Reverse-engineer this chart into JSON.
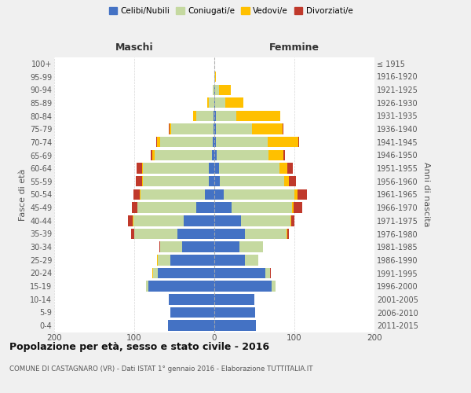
{
  "age_groups": [
    "100+",
    "95-99",
    "90-94",
    "85-89",
    "80-84",
    "75-79",
    "70-74",
    "65-69",
    "60-64",
    "55-59",
    "50-54",
    "45-49",
    "40-44",
    "35-39",
    "30-34",
    "25-29",
    "20-24",
    "15-19",
    "10-14",
    "5-9",
    "0-4"
  ],
  "birth_years": [
    "≤ 1915",
    "1916-1920",
    "1921-1925",
    "1926-1930",
    "1931-1935",
    "1936-1940",
    "1941-1945",
    "1946-1950",
    "1951-1955",
    "1956-1960",
    "1961-1965",
    "1966-1970",
    "1971-1975",
    "1976-1980",
    "1981-1985",
    "1986-1990",
    "1991-1995",
    "1996-2000",
    "2001-2005",
    "2006-2010",
    "2011-2015"
  ],
  "males": {
    "celibi": [
      0,
      0,
      0,
      0,
      1,
      1,
      2,
      3,
      7,
      7,
      12,
      23,
      38,
      46,
      40,
      55,
      71,
      82,
      57,
      55,
      58
    ],
    "coniugati": [
      0,
      0,
      2,
      7,
      22,
      53,
      66,
      72,
      82,
      82,
      80,
      73,
      63,
      54,
      28,
      16,
      5,
      3,
      0,
      0,
      0
    ],
    "vedovi": [
      0,
      0,
      0,
      2,
      3,
      2,
      4,
      2,
      1,
      1,
      1,
      0,
      1,
      0,
      0,
      1,
      1,
      0,
      0,
      0,
      0
    ],
    "divorziati": [
      0,
      0,
      0,
      0,
      0,
      1,
      1,
      2,
      7,
      8,
      8,
      7,
      6,
      4,
      1,
      0,
      0,
      0,
      0,
      0,
      0
    ]
  },
  "females": {
    "nubili": [
      0,
      0,
      1,
      1,
      2,
      2,
      2,
      3,
      6,
      7,
      12,
      22,
      33,
      38,
      31,
      38,
      64,
      72,
      50,
      51,
      52
    ],
    "coniugate": [
      0,
      1,
      5,
      13,
      25,
      45,
      65,
      65,
      75,
      80,
      88,
      75,
      62,
      52,
      30,
      17,
      6,
      4,
      0,
      0,
      0
    ],
    "vedove": [
      0,
      1,
      15,
      22,
      55,
      38,
      38,
      18,
      10,
      6,
      4,
      2,
      1,
      1,
      0,
      0,
      0,
      0,
      0,
      0,
      0
    ],
    "divorziate": [
      0,
      0,
      0,
      0,
      0,
      1,
      1,
      2,
      7,
      9,
      12,
      11,
      4,
      2,
      0,
      0,
      1,
      0,
      0,
      0,
      0
    ]
  },
  "colors": {
    "celibi": "#4472c4",
    "coniugati": "#c5d9a0",
    "vedovi": "#ffc000",
    "divorziati": "#c0392b"
  },
  "title": "Popolazione per età, sesso e stato civile - 2016",
  "subtitle": "COMUNE DI CASTAGNARO (VR) - Dati ISTAT 1° gennaio 2016 - Elaborazione TUTTITALIA.IT",
  "xlabel_left": "Maschi",
  "xlabel_right": "Femmine",
  "ylabel_left": "Fasce di età",
  "ylabel_right": "Anni di nascita",
  "xlim": 200,
  "bg_color": "#f0f0f0",
  "plot_bg": "#ffffff",
  "legend_labels": [
    "Celibi/Nubili",
    "Coniugati/e",
    "Vedovi/e",
    "Divorziati/e"
  ]
}
